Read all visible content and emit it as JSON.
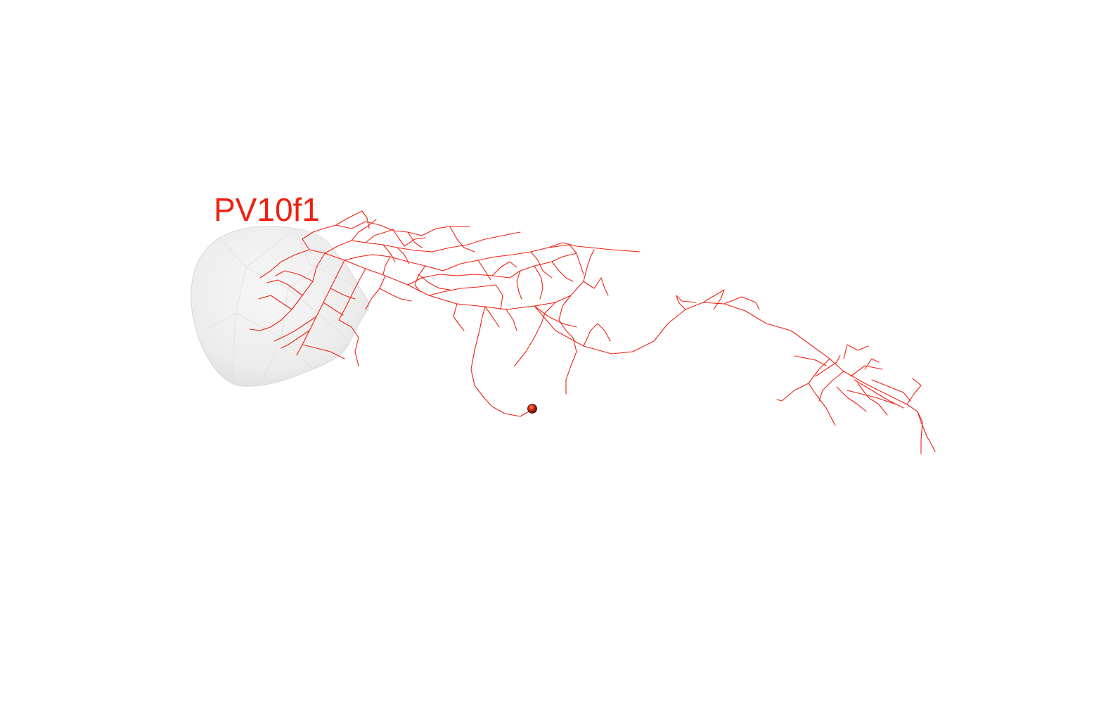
{
  "neuron": {
    "name": "PV10f1",
    "color": "#f02010"
  },
  "neuropil": {
    "color": "#e9e9e9"
  }
}
